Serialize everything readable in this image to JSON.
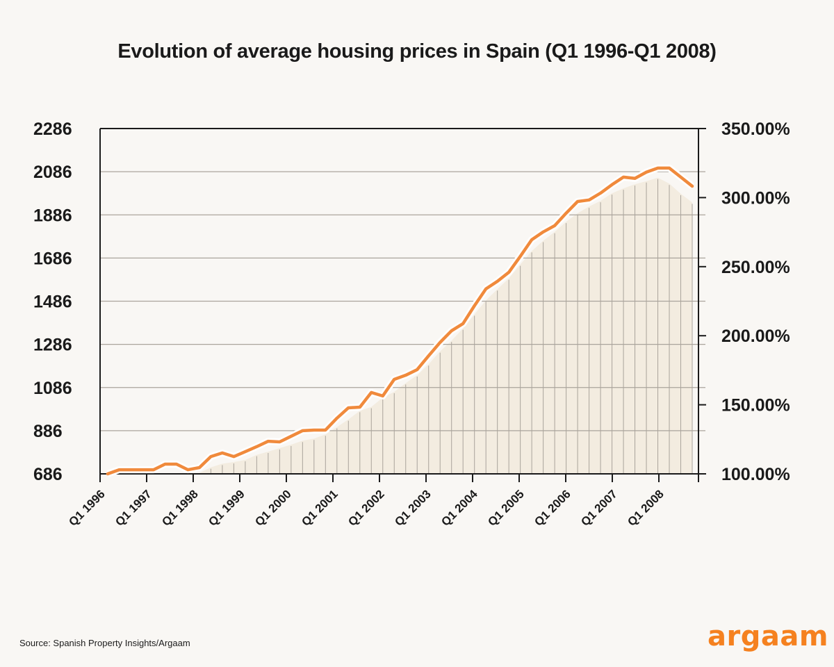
{
  "chart_data": {
    "type": "line",
    "title": "Evolution of average housing prices in Spain (Q1 1996-Q1 2008)",
    "xlabel": "",
    "ylabel": "",
    "y_left": {
      "ticks": [
        "686",
        "886",
        "1086",
        "1286",
        "1486",
        "1686",
        "1886",
        "2086",
        "2286"
      ],
      "range": [
        686,
        2286
      ]
    },
    "y_right": {
      "ticks": [
        "100.00%",
        "150.00%",
        "200.00%",
        "250.00%",
        "300.00%",
        "350.00%"
      ],
      "range": [
        100,
        350
      ]
    },
    "x_tick_labels": [
      "Q1 1996",
      "Q1 1997",
      "Q1 1998",
      "Q1 1999",
      "Q1 2000",
      "Q1 2001",
      "Q1 2002",
      "Q1 2003",
      "Q1 2004",
      "Q1 2005",
      "Q1 2006",
      "Q1 2007",
      "Q1 2008"
    ],
    "x_start": "Q1 1996",
    "x_step": "quarter",
    "grid": true,
    "line_color": "#f08a3c",
    "area_color": "#f3ece0",
    "series": [
      {
        "values": [
          686,
          705,
          705,
          705,
          705,
          731,
          731,
          705,
          715,
          766,
          783,
          766,
          789,
          812,
          837,
          834,
          860,
          886,
          889,
          889,
          944,
          992,
          995,
          1063,
          1047,
          1124,
          1143,
          1169,
          1233,
          1295,
          1349,
          1382,
          1465,
          1543,
          1578,
          1620,
          1694,
          1771,
          1807,
          1836,
          1894,
          1948,
          1955,
          1987,
          2026,
          2061,
          2055,
          2084,
          2103,
          2103,
          2061,
          2019
        ]
      }
    ]
  },
  "source": "Source: Spanish Property Insights/Argaam",
  "logo": "argaam",
  "colors": {
    "background": "#f9f7f4",
    "brand": "#f5811f"
  }
}
